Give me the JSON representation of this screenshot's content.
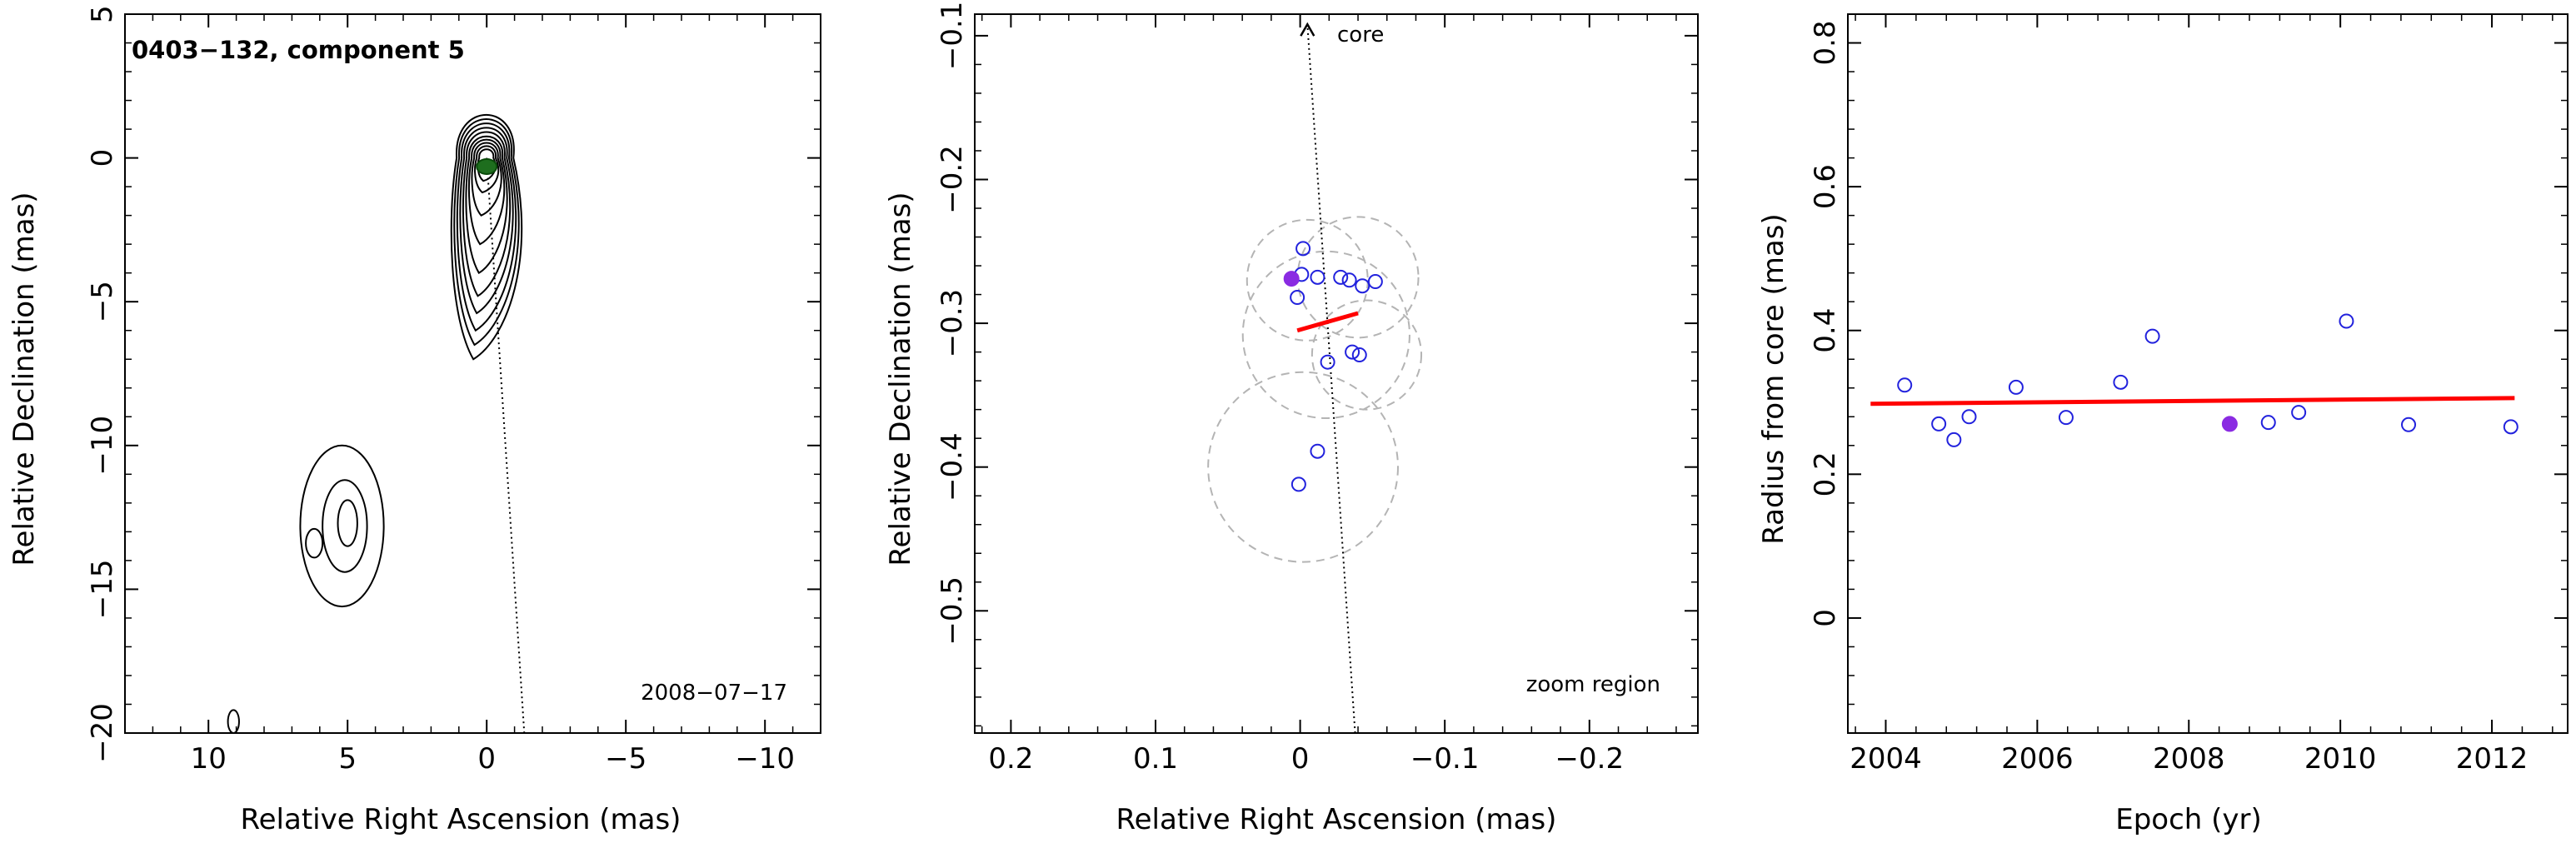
{
  "chart_data": [
    {
      "type": "contour",
      "title": "0403−132, component 5",
      "epoch_label": "2008−07−17",
      "xlabel": "Relative Right Ascension (mas)",
      "ylabel": "Relative Declination (mas)",
      "xlim": [
        13,
        -12
      ],
      "ylim": [
        -20,
        5
      ],
      "xticks": [
        10,
        5,
        0,
        -5,
        -10
      ],
      "yticks": [
        5,
        0,
        -5,
        -10,
        -15,
        -20
      ],
      "xtick_labels": [
        "10",
        "5",
        "0",
        "−5",
        "−10"
      ],
      "ytick_labels": [
        "5",
        "0",
        "−5",
        "−10",
        "−15",
        "−20"
      ],
      "component_marker": {
        "x": 0.0,
        "y": -0.3,
        "color": "#1e6e1e"
      },
      "direction_line": {
        "x0": 0.0,
        "y0": 0.0,
        "x1": -1.35,
        "y1": -20.0
      },
      "colors": {
        "contour": "#000000",
        "component": "#1e6e1e"
      }
    },
    {
      "type": "scatter",
      "annotation_core": "core",
      "annotation_zoom": "zoom region",
      "xlabel": "Relative Right Ascension (mas)",
      "ylabel": "Relative Declination (mas)",
      "xlim": [
        0.225,
        -0.275
      ],
      "ylim": [
        -0.585,
        -0.085
      ],
      "xticks": [
        0.2,
        0.1,
        0.0,
        -0.1,
        -0.2
      ],
      "yticks": [
        -0.1,
        -0.2,
        -0.3,
        -0.4,
        -0.5
      ],
      "xtick_labels": [
        "0.2",
        "0.1",
        "0",
        "−0.1",
        "−0.2"
      ],
      "ytick_labels": [
        "−0.1",
        "−0.2",
        "−0.3",
        "−0.4",
        "−0.5"
      ],
      "points": [
        {
          "x": -0.002,
          "y": -0.248
        },
        {
          "x": -0.001,
          "y": -0.266
        },
        {
          "x": -0.012,
          "y": -0.268
        },
        {
          "x": -0.028,
          "y": -0.268
        },
        {
          "x": -0.034,
          "y": -0.27
        },
        {
          "x": -0.043,
          "y": -0.274
        },
        {
          "x": -0.052,
          "y": -0.271
        },
        {
          "x": 0.002,
          "y": -0.282
        },
        {
          "x": -0.036,
          "y": -0.32
        },
        {
          "x": -0.041,
          "y": -0.322
        },
        {
          "x": -0.019,
          "y": -0.327
        },
        {
          "x": -0.012,
          "y": -0.389
        },
        {
          "x": 0.001,
          "y": -0.412
        }
      ],
      "highlight_point": {
        "x": 0.006,
        "y": -0.269
      },
      "circles": [
        {
          "x": -0.005,
          "y": -0.27,
          "r": 0.042
        },
        {
          "x": -0.04,
          "y": -0.268,
          "r": 0.042
        },
        {
          "x": -0.018,
          "y": -0.308,
          "r": 0.058
        },
        {
          "x": -0.046,
          "y": -0.322,
          "r": 0.038
        },
        {
          "x": -0.002,
          "y": -0.4,
          "r": 0.066
        }
      ],
      "fit_line": {
        "x0": 0.002,
        "y0": -0.305,
        "x1": -0.04,
        "y1": -0.293
      },
      "direction_line": {
        "x0": -0.038,
        "y0": -0.585,
        "x1": -0.005,
        "y1": -0.092
      },
      "colors": {
        "points": "#2222dd",
        "highlight": "#8a2be2",
        "fit": "#ff0000",
        "circles": "#b4b4b4"
      }
    },
    {
      "type": "scatter",
      "xlabel": "Epoch (yr)",
      "ylabel": "Radius from core (mas)",
      "xlim": [
        2003.5,
        2013.0
      ],
      "ylim": [
        -0.16,
        0.84
      ],
      "xticks": [
        2004,
        2006,
        2008,
        2010,
        2012
      ],
      "yticks": [
        0,
        0.2,
        0.4,
        0.6,
        0.8
      ],
      "xtick_labels": [
        "2004",
        "2006",
        "2008",
        "2010",
        "2012"
      ],
      "ytick_labels": [
        "0",
        "0.2",
        "0.4",
        "0.6",
        "0.8"
      ],
      "points": [
        {
          "x": 2004.25,
          "y": 0.324
        },
        {
          "x": 2004.7,
          "y": 0.27
        },
        {
          "x": 2004.9,
          "y": 0.248
        },
        {
          "x": 2005.1,
          "y": 0.28
        },
        {
          "x": 2005.72,
          "y": 0.321
        },
        {
          "x": 2006.38,
          "y": 0.279
        },
        {
          "x": 2007.1,
          "y": 0.328
        },
        {
          "x": 2007.52,
          "y": 0.392
        },
        {
          "x": 2009.05,
          "y": 0.272
        },
        {
          "x": 2009.45,
          "y": 0.286
        },
        {
          "x": 2010.08,
          "y": 0.413
        },
        {
          "x": 2010.9,
          "y": 0.269
        },
        {
          "x": 2012.25,
          "y": 0.266
        }
      ],
      "highlight_point": {
        "x": 2008.54,
        "y": 0.27
      },
      "fit_line": {
        "x0": 2003.8,
        "y0": 0.298,
        "x1": 2012.3,
        "y1": 0.306
      },
      "colors": {
        "points": "#2222dd",
        "highlight": "#8a2be2",
        "fit": "#ff0000"
      }
    }
  ]
}
